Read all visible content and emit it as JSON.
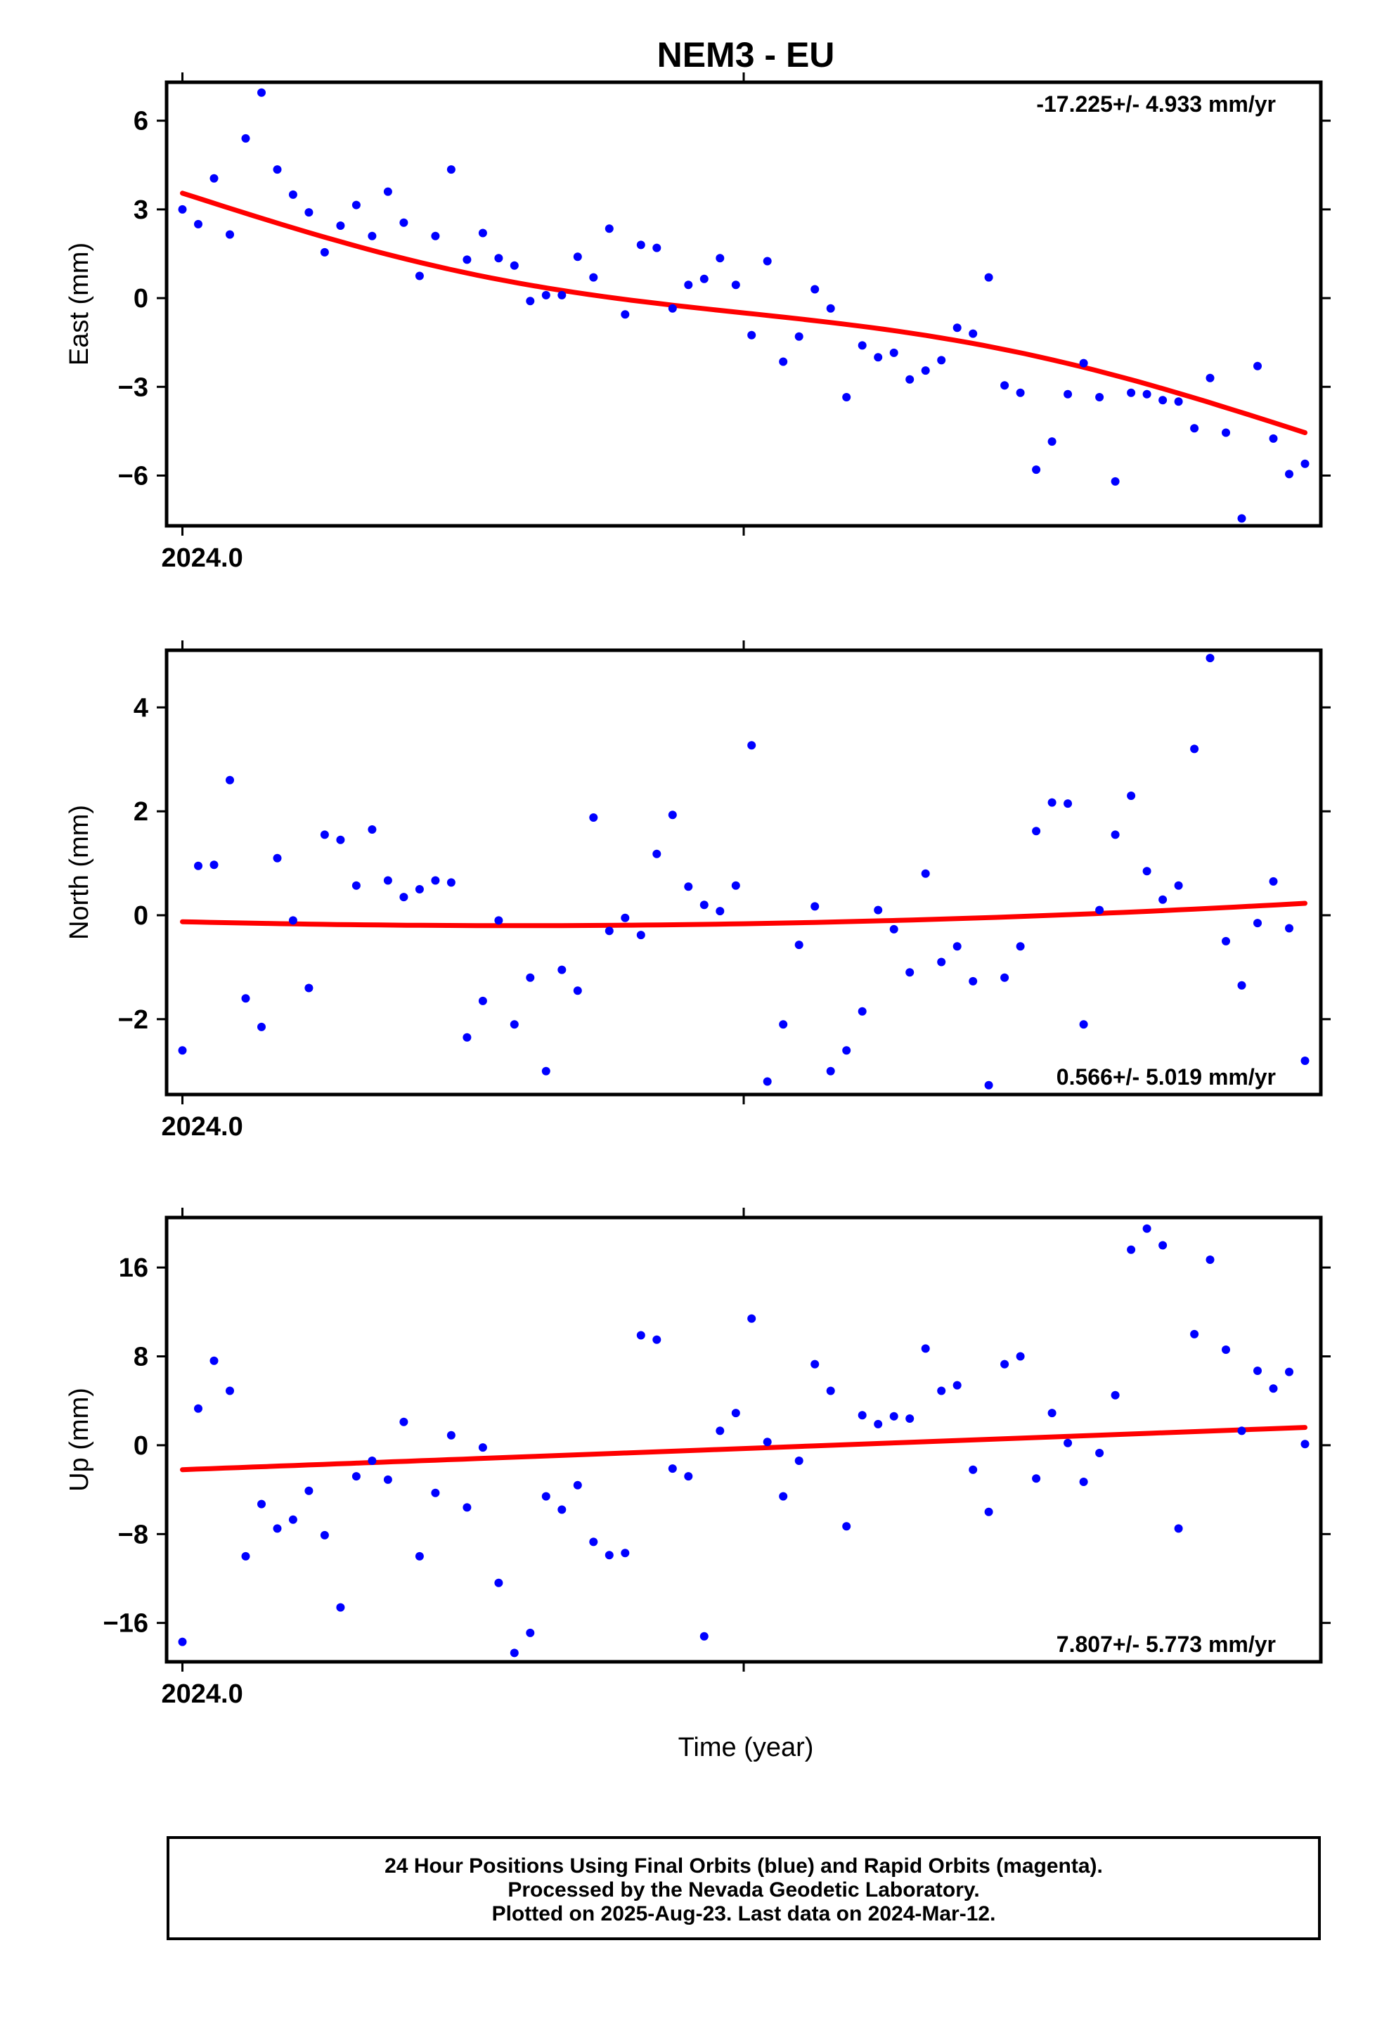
{
  "chart_data": {
    "type": "scatter",
    "title": "NEM3 - EU",
    "xlabel": "Time (year)",
    "x_tick_label": "2024.0",
    "x_unit": "day of year 2024",
    "xlim": [
      -1,
      72
    ],
    "colors": {
      "points": "#0000ff",
      "fit": "#ff0000",
      "axes": "#000000"
    },
    "panels": [
      {
        "ylabel": "East (mm)",
        "ylim": [
          -7.7,
          7.3
        ],
        "yticks": [
          -6,
          -3,
          0,
          3,
          6
        ],
        "rate_label": "-17.225+/- 4.933 mm/yr",
        "rate_position": "top-right",
        "fit": {
          "x": [
            0,
            71
          ],
          "y": [
            3.55,
            -4.55
          ],
          "shape": "slight-s"
        },
        "x": [
          0,
          1,
          2,
          3,
          4,
          5,
          6,
          7,
          8,
          9,
          10,
          11,
          12,
          13,
          14,
          15,
          16,
          17,
          18,
          19,
          20,
          21,
          22,
          23,
          24,
          25,
          26,
          27,
          28,
          29,
          30,
          31,
          32,
          33,
          34,
          35,
          36,
          37,
          38,
          39,
          40,
          41,
          42,
          43,
          44,
          45,
          46,
          47,
          48,
          49,
          50,
          51,
          52,
          53,
          54,
          55,
          56,
          57,
          58,
          59,
          60,
          61,
          62,
          63,
          64,
          65,
          66,
          67,
          68,
          69,
          70,
          71
        ],
        "y": [
          3.0,
          2.5,
          4.05,
          2.15,
          5.4,
          6.95,
          4.35,
          3.5,
          2.9,
          1.55,
          2.45,
          3.15,
          2.1,
          3.6,
          2.55,
          0.75,
          2.1,
          4.35,
          1.3,
          2.2,
          1.35,
          1.1,
          -0.1,
          0.1,
          0.1,
          1.4,
          0.7,
          2.35,
          -0.55,
          1.8,
          1.7,
          -0.35,
          0.45,
          0.65,
          1.35,
          0.45,
          -1.25,
          1.25,
          -2.15,
          -1.3,
          0.3,
          -0.35,
          -3.35,
          -1.6,
          -2.0,
          -1.85,
          -2.75,
          -2.45,
          -2.1,
          -1.0,
          -1.2,
          0.7,
          -2.95,
          -3.2,
          -5.8,
          -4.85,
          -3.25,
          -2.2,
          -3.35,
          -6.2,
          -3.2,
          -3.25,
          -3.45,
          -3.5,
          -4.4,
          -2.7,
          -4.55,
          -7.45,
          -2.3,
          -4.75,
          -5.95,
          -5.6
        ]
      },
      {
        "ylabel": "North (mm)",
        "ylim": [
          -3.45,
          5.1
        ],
        "yticks": [
          -2,
          0,
          2,
          4
        ],
        "rate_label": "0.566+/- 5.019 mm/yr",
        "rate_position": "bottom-right",
        "fit": {
          "x": [
            0,
            21,
            71
          ],
          "y": [
            -0.08,
            -0.2,
            0.23
          ],
          "shape": "quadratic"
        },
        "x": [
          0,
          1,
          2,
          3,
          4,
          5,
          6,
          7,
          8,
          9,
          10,
          11,
          12,
          13,
          14,
          15,
          16,
          17,
          18,
          19,
          20,
          21,
          22,
          23,
          24,
          25,
          26,
          27,
          28,
          29,
          30,
          31,
          32,
          33,
          34,
          35,
          36,
          37,
          38,
          39,
          40,
          41,
          42,
          43,
          44,
          45,
          46,
          47,
          48,
          49,
          50,
          51,
          52,
          53,
          54,
          55,
          56,
          57,
          58,
          59,
          60,
          61,
          62,
          63,
          64,
          65,
          66,
          67,
          68,
          69,
          70,
          71
        ],
        "y": [
          -2.6,
          0.95,
          0.97,
          2.6,
          -1.6,
          -2.15,
          1.1,
          -0.1,
          -1.4,
          1.55,
          1.45,
          0.57,
          1.65,
          0.67,
          0.35,
          0.5,
          0.67,
          0.63,
          -2.35,
          -1.65,
          -0.1,
          -2.1,
          -1.2,
          -3.0,
          -1.05,
          -1.45,
          1.88,
          -0.3,
          -0.05,
          -0.38,
          1.18,
          1.93,
          0.55,
          0.2,
          0.08,
          0.57,
          3.27,
          -3.2,
          -2.1,
          -0.57,
          0.17,
          -3.0,
          -2.6,
          -1.85,
          0.1,
          -0.27,
          -1.1,
          0.8,
          -0.9,
          -0.6,
          -1.27,
          -3.27,
          -1.2,
          -0.6,
          1.62,
          2.17,
          2.15,
          -2.1,
          0.1,
          1.55,
          2.3,
          0.85,
          0.3,
          0.57,
          3.2,
          4.95,
          -0.5,
          -1.35,
          -0.15,
          0.65,
          -0.25,
          -2.8
        ]
      },
      {
        "ylabel": "Up (mm)",
        "ylim": [
          -19.5,
          20.5
        ],
        "yticks": [
          -16,
          -8,
          0,
          8,
          16
        ],
        "rate_label": "7.807+/- 5.773 mm/yr",
        "rate_position": "bottom-right",
        "fit": {
          "x": [
            0,
            71
          ],
          "y": [
            -2.2,
            1.6
          ],
          "shape": "linear"
        },
        "x": [
          0,
          1,
          2,
          3,
          4,
          5,
          6,
          7,
          8,
          9,
          10,
          11,
          12,
          13,
          14,
          15,
          16,
          17,
          18,
          19,
          20,
          21,
          22,
          23,
          24,
          25,
          26,
          27,
          28,
          29,
          30,
          31,
          32,
          33,
          34,
          35,
          36,
          37,
          38,
          39,
          40,
          41,
          42,
          43,
          44,
          45,
          46,
          47,
          48,
          49,
          50,
          51,
          52,
          53,
          54,
          55,
          56,
          57,
          58,
          59,
          60,
          61,
          62,
          63,
          64,
          65,
          66,
          67,
          68,
          69,
          70,
          71
        ],
        "y": [
          -17.7,
          3.3,
          7.6,
          4.9,
          -10.0,
          -5.3,
          -7.5,
          -6.7,
          -4.1,
          -8.1,
          -14.6,
          -2.8,
          -1.4,
          -3.1,
          2.1,
          -10.0,
          -4.3,
          0.9,
          -5.6,
          -0.2,
          -12.4,
          -18.7,
          -16.9,
          -4.6,
          -5.8,
          -3.6,
          -8.7,
          -9.9,
          -9.7,
          9.9,
          9.5,
          -2.1,
          -2.8,
          -17.2,
          1.3,
          2.9,
          11.4,
          0.3,
          -4.6,
          -1.4,
          7.3,
          4.9,
          -7.3,
          2.7,
          1.9,
          2.6,
          2.4,
          8.7,
          4.9,
          5.4,
          -2.2,
          -6.0,
          7.3,
          8.0,
          -3.0,
          2.9,
          0.2,
          -3.3,
          -0.7,
          4.5,
          17.6,
          19.5,
          18.0,
          -7.5,
          10.0,
          16.7,
          8.6,
          1.3,
          6.7,
          5.1,
          6.6,
          0.1
        ]
      }
    ]
  },
  "caption": {
    "line1": "24 Hour Positions Using Final Orbits (blue) and Rapid Orbits (magenta).",
    "line2": "Processed by the Nevada Geodetic Laboratory.",
    "line3": "Plotted on 2025-Aug-23. Last data on 2024-Mar-12."
  }
}
